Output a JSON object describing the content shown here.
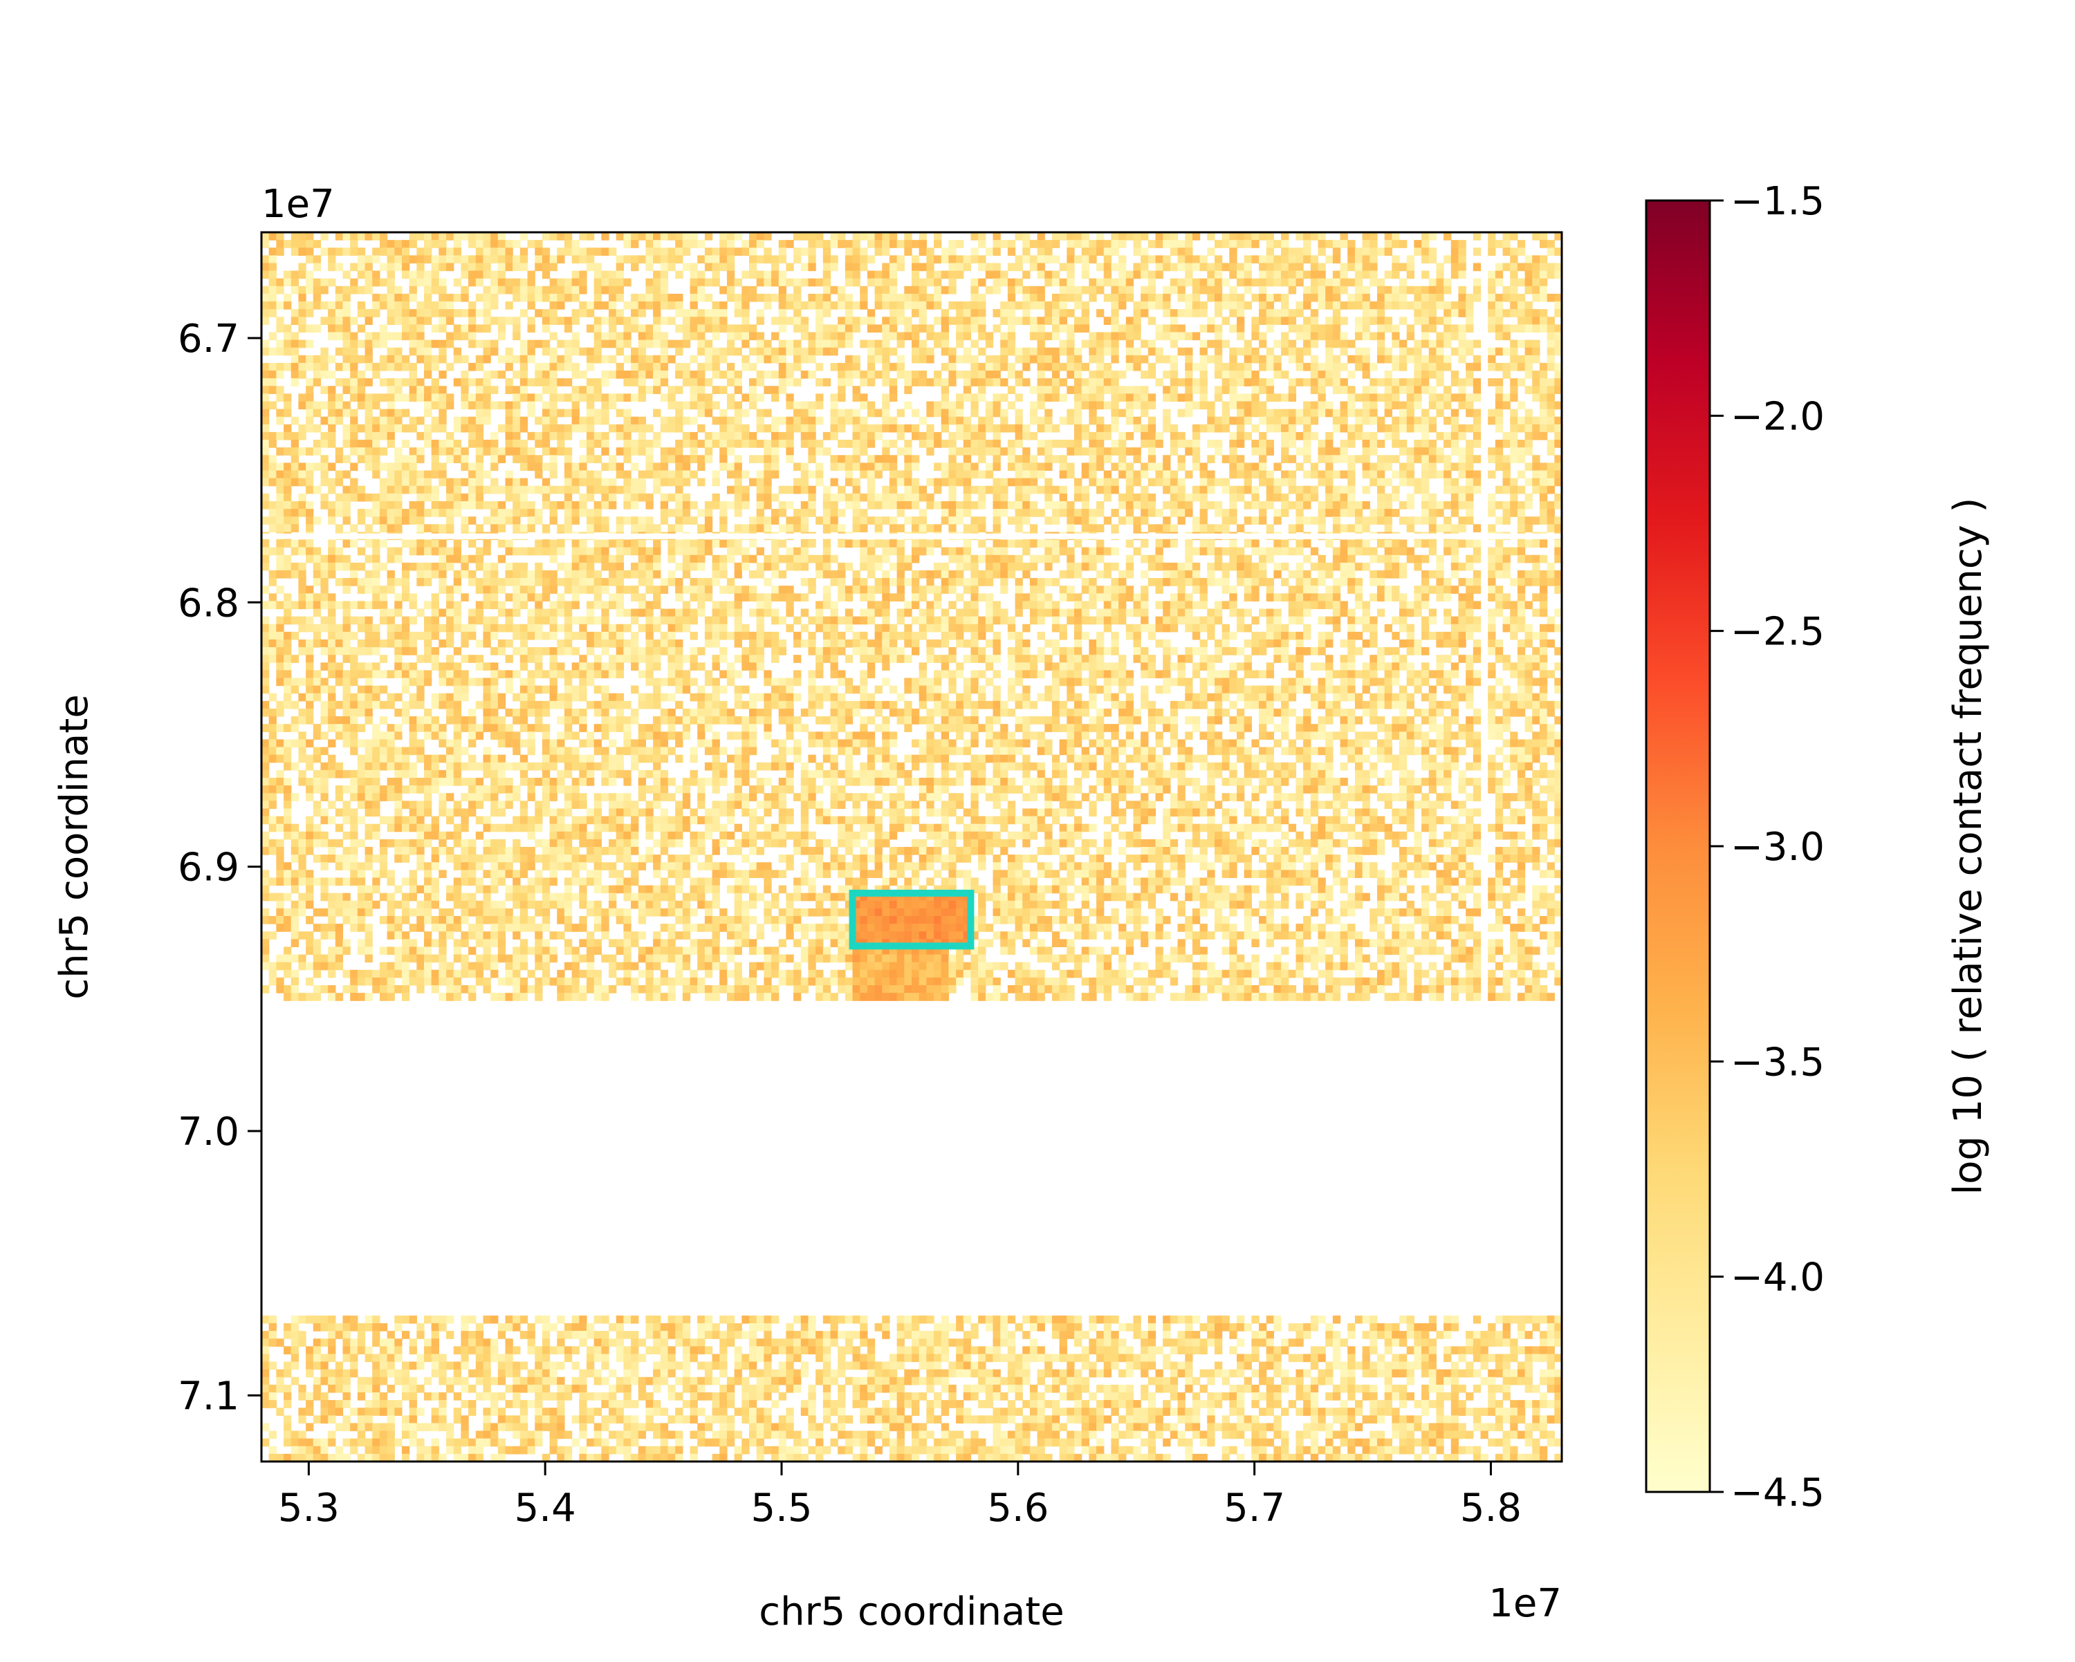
{
  "chart_data": {
    "type": "heatmap",
    "title": "",
    "xlabel": "chr5 coordinate",
    "ylabel": "chr5 coordinate",
    "x_offset_label": "1e7",
    "y_offset_label": "1e7",
    "x_scale_factor": 10000000,
    "y_scale_factor": 10000000,
    "xlim": [
      52800000,
      58300000
    ],
    "ylim": [
      67100000,
      72300000
    ],
    "y_inverted": true,
    "x_ticks": [
      53000000,
      54000000,
      55000000,
      56000000,
      57000000,
      58000000
    ],
    "x_tick_labels": [
      "5.3",
      "5.4",
      "5.5",
      "5.6",
      "5.7",
      "5.8"
    ],
    "y_ticks": [
      67000000,
      68000000,
      69000000,
      70000000,
      71000000
    ],
    "y_tick_labels": [
      "6.7",
      "6.8",
      "6.9",
      "7.0",
      "7.1"
    ],
    "colormap": "YlOrRd",
    "colorbar": {
      "label": "log 10 ( relative contact frequency )",
      "vmin": -4.5,
      "vmax": -1.5,
      "ticks": [
        -1.5,
        -2.0,
        -2.5,
        -3.0,
        -3.5,
        -4.0,
        -4.5
      ],
      "tick_labels": [
        "−1.5",
        "−2.0",
        "−2.5",
        "−3.0",
        "−3.5",
        "−4.0",
        "−4.5"
      ],
      "colors": [
        "#ffffcc",
        "#ffeda0",
        "#fed976",
        "#feb24c",
        "#fd8d3c",
        "#fc4e2a",
        "#e31a1c",
        "#bd0026",
        "#800026"
      ]
    },
    "data_regions": [
      {
        "y_range": [
          66600000,
          69500000
        ],
        "typical_value": -3.9,
        "note": "sparse contacts"
      },
      {
        "y_range": [
          70700000,
          71000000
        ],
        "typical_value": -3.9,
        "note": "sparse contacts"
      }
    ],
    "empty_region": {
      "y_range": [
        69500000,
        70700000
      ],
      "value": null
    },
    "hotspot": {
      "x_range": [
        55300000,
        55800000
      ],
      "y_range": [
        69100000,
        69300000
      ],
      "value": -3.1
    },
    "hotspot_below": {
      "x_range": [
        55300000,
        55700000
      ],
      "y_range": [
        69300000,
        69500000
      ],
      "value": -3.4
    },
    "highlight_box": {
      "x_range": [
        55300000,
        55800000
      ],
      "y_range": [
        69100000,
        69300000
      ],
      "color": "#1dd6c2"
    }
  }
}
